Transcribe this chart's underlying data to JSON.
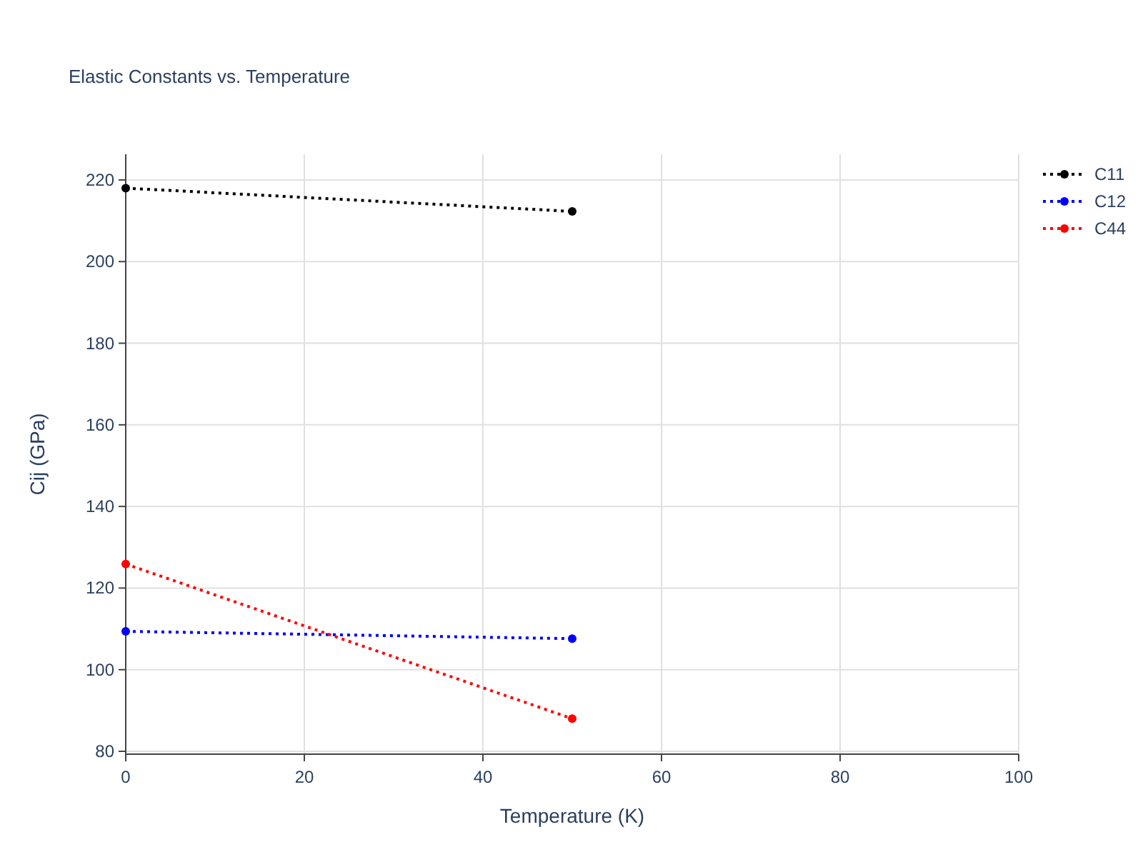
{
  "chart_data": {
    "type": "line",
    "title": "Elastic Constants vs. Temperature",
    "xlabel": "Temperature (K)",
    "ylabel": "Cij (GPa)",
    "x": [
      0,
      50
    ],
    "series": [
      {
        "name": "C11",
        "color": "#000000",
        "values": [
          218,
          212.3
        ]
      },
      {
        "name": "C12",
        "color": "#0000ff",
        "values": [
          109.4,
          107.6
        ]
      },
      {
        "name": "C44",
        "color": "#ff0000",
        "values": [
          125.9,
          88
        ]
      }
    ],
    "xlim": [
      0,
      100
    ],
    "xticks": [
      0,
      20,
      40,
      60,
      80,
      100
    ],
    "ylim": [
      79.3,
      226.3
    ],
    "yticks": [
      80,
      100,
      120,
      140,
      160,
      180,
      200,
      220
    ],
    "grid": true,
    "legend": "top right",
    "marker": "circle",
    "line_style": "dotted"
  }
}
